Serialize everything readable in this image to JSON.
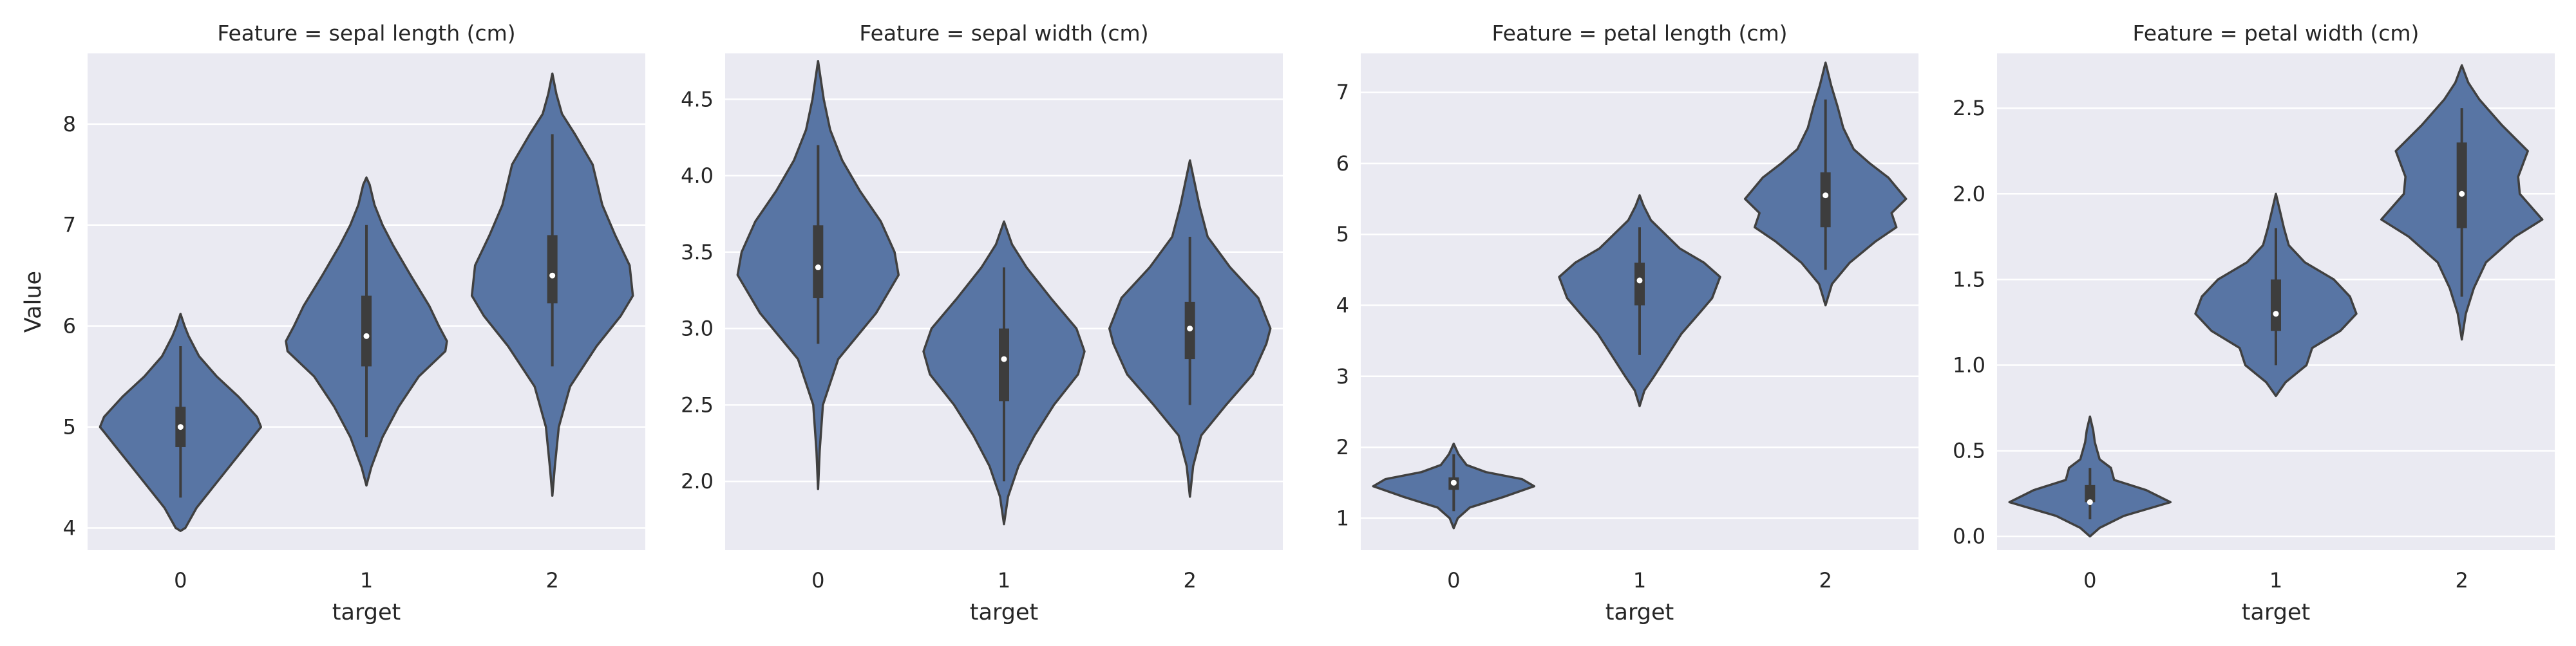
{
  "figure": {
    "background": "#ffffff",
    "panel_background": "#eaeaf2",
    "grid_color": "#ffffff",
    "violin_fill": "#5875a4",
    "line_color": "#404040",
    "box_color": "#3d3d3d",
    "median_color": "#ffffff"
  },
  "chart_data": [
    {
      "type": "violin",
      "title": "Feature = sepal length (cm)",
      "xlabel": "target",
      "ylabel": "Value",
      "categories": [
        "0",
        "1",
        "2"
      ],
      "ylim": [
        3.78,
        8.7
      ],
      "yticks": [
        4,
        5,
        6,
        7,
        8
      ],
      "ytick_labels": [
        "4",
        "5",
        "6",
        "7",
        "8"
      ],
      "grid": true,
      "violins": [
        {
          "min": 4.3,
          "q1": 4.8,
          "median": 5.0,
          "q3": 5.2,
          "max": 5.8,
          "lo": 3.97,
          "hi": 6.12,
          "profile": [
            [
              3.97,
              0
            ],
            [
              4.0,
              0.06
            ],
            [
              4.2,
              0.2
            ],
            [
              4.4,
              0.4
            ],
            [
              4.6,
              0.6
            ],
            [
              4.8,
              0.8
            ],
            [
              4.95,
              0.95
            ],
            [
              5.0,
              1.0
            ],
            [
              5.1,
              0.95
            ],
            [
              5.3,
              0.72
            ],
            [
              5.5,
              0.45
            ],
            [
              5.7,
              0.23
            ],
            [
              5.9,
              0.1
            ],
            [
              6.0,
              0.05
            ],
            [
              6.12,
              0
            ]
          ]
        },
        {
          "min": 4.9,
          "q1": 5.6,
          "median": 5.9,
          "q3": 6.3,
          "max": 7.0,
          "lo": 4.42,
          "hi": 7.47,
          "profile": [
            [
              4.42,
              0
            ],
            [
              4.6,
              0.06
            ],
            [
              4.9,
              0.2
            ],
            [
              5.2,
              0.4
            ],
            [
              5.5,
              0.65
            ],
            [
              5.75,
              0.98
            ],
            [
              5.85,
              1.0
            ],
            [
              6.0,
              0.9
            ],
            [
              6.2,
              0.78
            ],
            [
              6.5,
              0.55
            ],
            [
              6.8,
              0.33
            ],
            [
              7.0,
              0.2
            ],
            [
              7.2,
              0.1
            ],
            [
              7.4,
              0.04
            ],
            [
              7.47,
              0
            ]
          ]
        },
        {
          "min": 5.6,
          "q1": 6.225,
          "median": 6.5,
          "q3": 6.9,
          "max": 7.9,
          "lo": 4.32,
          "hi": 8.5,
          "profile": [
            [
              4.32,
              0
            ],
            [
              4.6,
              0.03
            ],
            [
              5.0,
              0.08
            ],
            [
              5.4,
              0.22
            ],
            [
              5.8,
              0.55
            ],
            [
              6.1,
              0.85
            ],
            [
              6.3,
              1.0
            ],
            [
              6.6,
              0.96
            ],
            [
              6.9,
              0.78
            ],
            [
              7.2,
              0.62
            ],
            [
              7.6,
              0.5
            ],
            [
              7.9,
              0.28
            ],
            [
              8.1,
              0.12
            ],
            [
              8.3,
              0.05
            ],
            [
              8.5,
              0
            ]
          ]
        }
      ]
    },
    {
      "type": "violin",
      "title": "Feature = sepal width (cm)",
      "xlabel": "target",
      "ylabel": "",
      "categories": [
        "0",
        "1",
        "2"
      ],
      "ylim": [
        1.55,
        4.8
      ],
      "yticks": [
        2.0,
        2.5,
        3.0,
        3.5,
        4.0,
        4.5
      ],
      "ytick_labels": [
        "2.0",
        "2.5",
        "3.0",
        "3.5",
        "4.0",
        "4.5"
      ],
      "grid": true,
      "violins": [
        {
          "min": 2.9,
          "q1": 3.2,
          "median": 3.4,
          "q3": 3.675,
          "max": 4.2,
          "lo": 1.95,
          "hi": 4.75,
          "profile": [
            [
              1.95,
              0
            ],
            [
              2.2,
              0.02
            ],
            [
              2.5,
              0.06
            ],
            [
              2.8,
              0.25
            ],
            [
              3.1,
              0.72
            ],
            [
              3.35,
              1.0
            ],
            [
              3.5,
              0.95
            ],
            [
              3.7,
              0.78
            ],
            [
              3.9,
              0.52
            ],
            [
              4.1,
              0.3
            ],
            [
              4.3,
              0.15
            ],
            [
              4.5,
              0.07
            ],
            [
              4.75,
              0
            ]
          ]
        },
        {
          "min": 2.0,
          "q1": 2.525,
          "median": 2.8,
          "q3": 3.0,
          "max": 3.4,
          "lo": 1.72,
          "hi": 3.7,
          "profile": [
            [
              1.72,
              0
            ],
            [
              1.9,
              0.05
            ],
            [
              2.1,
              0.18
            ],
            [
              2.3,
              0.38
            ],
            [
              2.5,
              0.62
            ],
            [
              2.7,
              0.92
            ],
            [
              2.85,
              1.0
            ],
            [
              3.0,
              0.9
            ],
            [
              3.2,
              0.58
            ],
            [
              3.4,
              0.28
            ],
            [
              3.55,
              0.1
            ],
            [
              3.7,
              0
            ]
          ]
        },
        {
          "min": 2.5,
          "q1": 2.8,
          "median": 3.0,
          "q3": 3.175,
          "max": 3.6,
          "lo": 1.9,
          "hi": 4.1,
          "profile": [
            [
              1.9,
              0
            ],
            [
              2.1,
              0.04
            ],
            [
              2.3,
              0.14
            ],
            [
              2.5,
              0.45
            ],
            [
              2.7,
              0.78
            ],
            [
              2.9,
              0.95
            ],
            [
              3.0,
              1.0
            ],
            [
              3.2,
              0.85
            ],
            [
              3.4,
              0.5
            ],
            [
              3.6,
              0.22
            ],
            [
              3.8,
              0.12
            ],
            [
              3.95,
              0.06
            ],
            [
              4.1,
              0
            ]
          ]
        }
      ]
    },
    {
      "type": "violin",
      "title": "Feature = petal length (cm)",
      "xlabel": "target",
      "ylabel": "",
      "categories": [
        "0",
        "1",
        "2"
      ],
      "ylim": [
        0.55,
        7.55
      ],
      "yticks": [
        1,
        2,
        3,
        4,
        5,
        6,
        7
      ],
      "ytick_labels": [
        "1",
        "2",
        "3",
        "4",
        "5",
        "6",
        "7"
      ],
      "grid": true,
      "violins": [
        {
          "min": 1.1,
          "q1": 1.4,
          "median": 1.5,
          "q3": 1.575,
          "max": 1.9,
          "lo": 0.86,
          "hi": 2.05,
          "profile": [
            [
              0.86,
              0
            ],
            [
              1.0,
              0.05
            ],
            [
              1.15,
              0.2
            ],
            [
              1.3,
              0.62
            ],
            [
              1.45,
              1.0
            ],
            [
              1.55,
              0.85
            ],
            [
              1.65,
              0.4
            ],
            [
              1.75,
              0.16
            ],
            [
              1.9,
              0.06
            ],
            [
              2.05,
              0
            ]
          ]
        },
        {
          "min": 3.3,
          "q1": 4.0,
          "median": 4.35,
          "q3": 4.6,
          "max": 5.1,
          "lo": 2.58,
          "hi": 5.55,
          "profile": [
            [
              2.58,
              0
            ],
            [
              2.8,
              0.06
            ],
            [
              3.0,
              0.18
            ],
            [
              3.3,
              0.35
            ],
            [
              3.6,
              0.52
            ],
            [
              3.9,
              0.75
            ],
            [
              4.1,
              0.9
            ],
            [
              4.4,
              1.0
            ],
            [
              4.6,
              0.8
            ],
            [
              4.8,
              0.5
            ],
            [
              5.0,
              0.32
            ],
            [
              5.2,
              0.14
            ],
            [
              5.4,
              0.05
            ],
            [
              5.55,
              0
            ]
          ]
        },
        {
          "min": 4.5,
          "q1": 5.1,
          "median": 5.55,
          "q3": 5.875,
          "max": 6.9,
          "lo": 4.0,
          "hi": 7.42,
          "profile": [
            [
              4.0,
              0
            ],
            [
              4.3,
              0.08
            ],
            [
              4.6,
              0.3
            ],
            [
              4.9,
              0.62
            ],
            [
              5.1,
              0.88
            ],
            [
              5.3,
              0.82
            ],
            [
              5.5,
              1.0
            ],
            [
              5.8,
              0.78
            ],
            [
              6.0,
              0.55
            ],
            [
              6.2,
              0.35
            ],
            [
              6.5,
              0.22
            ],
            [
              6.8,
              0.15
            ],
            [
              7.1,
              0.07
            ],
            [
              7.42,
              0
            ]
          ]
        }
      ]
    },
    {
      "type": "violin",
      "title": "Feature = petal width (cm)",
      "xlabel": "target",
      "ylabel": "",
      "categories": [
        "0",
        "1",
        "2"
      ],
      "ylim": [
        -0.08,
        2.82
      ],
      "yticks": [
        0.0,
        0.5,
        1.0,
        1.5,
        2.0,
        2.5
      ],
      "ytick_labels": [
        "0.0",
        "0.5",
        "1.0",
        "1.5",
        "2.0",
        "2.5"
      ],
      "grid": true,
      "violins": [
        {
          "min": 0.1,
          "q1": 0.2,
          "median": 0.2,
          "q3": 0.3,
          "max": 0.4,
          "lo": 0.0,
          "hi": 0.7,
          "profile": [
            [
              0.0,
              0
            ],
            [
              0.05,
              0.12
            ],
            [
              0.12,
              0.42
            ],
            [
              0.2,
              1.0
            ],
            [
              0.27,
              0.7
            ],
            [
              0.33,
              0.3
            ],
            [
              0.4,
              0.26
            ],
            [
              0.45,
              0.12
            ],
            [
              0.55,
              0.06
            ],
            [
              0.62,
              0.04
            ],
            [
              0.7,
              0
            ]
          ]
        },
        {
          "min": 1.0,
          "q1": 1.2,
          "median": 1.3,
          "q3": 1.5,
          "max": 1.8,
          "lo": 0.82,
          "hi": 2.0,
          "profile": [
            [
              0.82,
              0
            ],
            [
              0.9,
              0.12
            ],
            [
              1.0,
              0.38
            ],
            [
              1.1,
              0.45
            ],
            [
              1.2,
              0.8
            ],
            [
              1.3,
              1.0
            ],
            [
              1.4,
              0.92
            ],
            [
              1.5,
              0.72
            ],
            [
              1.6,
              0.36
            ],
            [
              1.7,
              0.16
            ],
            [
              1.8,
              0.1
            ],
            [
              1.9,
              0.05
            ],
            [
              2.0,
              0
            ]
          ]
        },
        {
          "min": 1.4,
          "q1": 1.8,
          "median": 2.0,
          "q3": 2.3,
          "max": 2.5,
          "lo": 1.15,
          "hi": 2.75,
          "profile": [
            [
              1.15,
              0
            ],
            [
              1.3,
              0.05
            ],
            [
              1.45,
              0.15
            ],
            [
              1.6,
              0.3
            ],
            [
              1.75,
              0.66
            ],
            [
              1.85,
              1.0
            ],
            [
              2.0,
              0.72
            ],
            [
              2.1,
              0.7
            ],
            [
              2.25,
              0.82
            ],
            [
              2.4,
              0.5
            ],
            [
              2.55,
              0.22
            ],
            [
              2.65,
              0.08
            ],
            [
              2.75,
              0
            ]
          ]
        }
      ]
    }
  ]
}
